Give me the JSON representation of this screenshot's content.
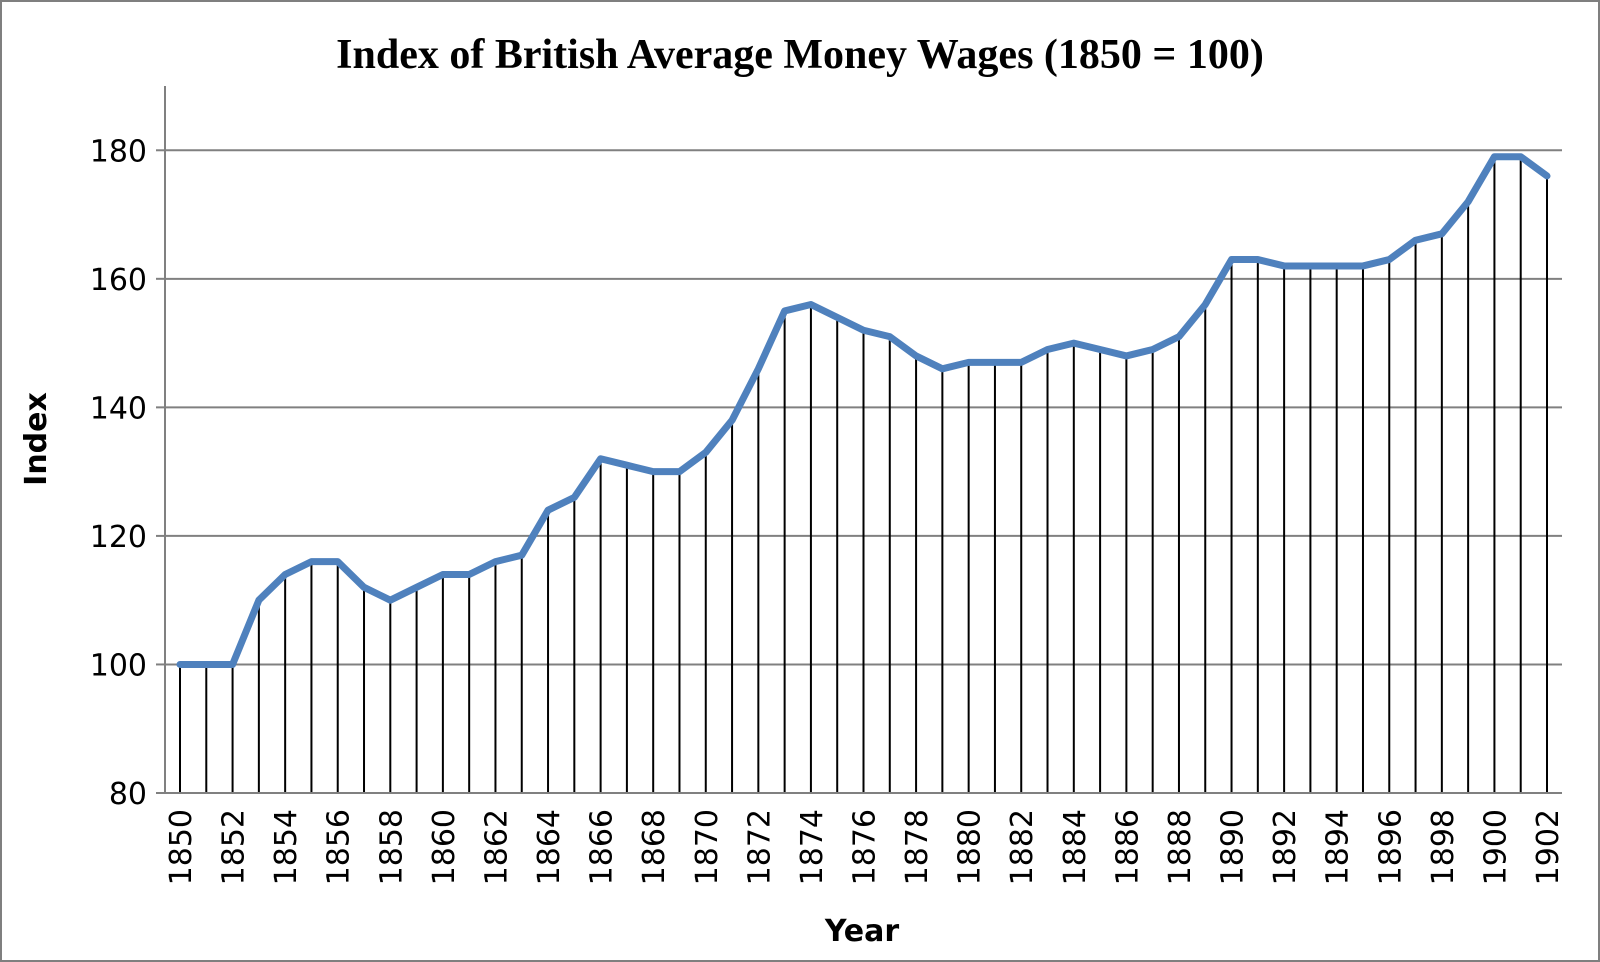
{
  "chart_data": {
    "type": "line",
    "title": "Index of British Average Money Wages (1850 = 100)",
    "xlabel": "Year",
    "ylabel": "Index",
    "ylim": [
      80,
      190
    ],
    "yticks": [
      80,
      100,
      120,
      140,
      160,
      180
    ],
    "grid": "horizontal",
    "drop_lines": true,
    "legend": "none",
    "x_tick_labels": [
      "1850",
      "1852",
      "1854",
      "1856",
      "1858",
      "1860",
      "1862",
      "1864",
      "1866",
      "1868",
      "1870",
      "1872",
      "1874",
      "1876",
      "1878",
      "1880",
      "1882",
      "1884",
      "1886",
      "1888",
      "1890",
      "1892",
      "1894",
      "1896",
      "1898",
      "1900",
      "1902"
    ],
    "x": [
      1850,
      1851,
      1852,
      1853,
      1854,
      1855,
      1856,
      1857,
      1858,
      1859,
      1860,
      1861,
      1862,
      1863,
      1864,
      1865,
      1866,
      1867,
      1868,
      1869,
      1870,
      1871,
      1872,
      1873,
      1874,
      1875,
      1876,
      1877,
      1878,
      1879,
      1880,
      1881,
      1882,
      1883,
      1884,
      1885,
      1886,
      1887,
      1888,
      1889,
      1890,
      1891,
      1892,
      1893,
      1894,
      1895,
      1896,
      1897,
      1898,
      1899,
      1900,
      1901,
      1902
    ],
    "series": [
      {
        "name": "Index",
        "color": "#4f81bd",
        "values": [
          100,
          100,
          100,
          110,
          114,
          116,
          116,
          112,
          110,
          112,
          114,
          114,
          116,
          117,
          124,
          126,
          132,
          131,
          130,
          130,
          133,
          138,
          146,
          155,
          156,
          154,
          152,
          151,
          148,
          146,
          147,
          147,
          147,
          149,
          150,
          149,
          148,
          149,
          151,
          156,
          163,
          163,
          162,
          162,
          162,
          162,
          163,
          166,
          167,
          172,
          179,
          179,
          176
        ]
      }
    ],
    "colors": {
      "grid": "#808080",
      "drop_line": "#000000",
      "axis": "#808080",
      "line": "#4f81bd"
    }
  }
}
